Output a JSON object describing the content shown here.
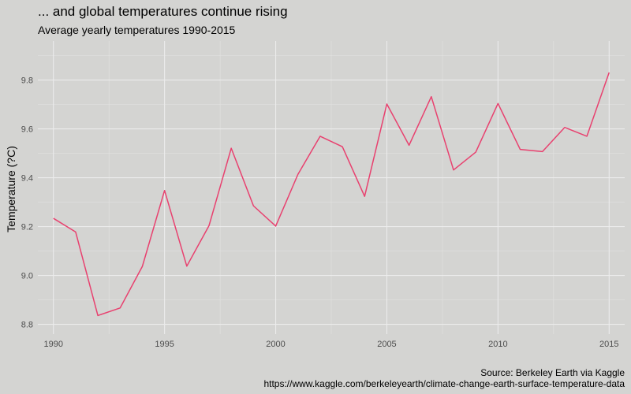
{
  "chart_data": {
    "type": "line",
    "title": "... and global temperatures continue rising",
    "subtitle": "Average yearly temperatures 1990-2015",
    "xlabel": "",
    "ylabel": "Temperature (?C)",
    "caption": [
      "Source: Berkeley Earth via Kaggle",
      "https://www.kaggle.com/berkeleyearth/climate-change-earth-surface-temperature-data"
    ],
    "x_ticks": [
      1990,
      1995,
      2000,
      2005,
      2010,
      2015
    ],
    "y_ticks": [
      "8.8",
      "9.0",
      "9.2",
      "9.4",
      "9.6",
      "9.8"
    ],
    "xlim": [
      1989.3,
      2015.7
    ],
    "ylim": [
      8.76,
      9.96
    ],
    "grid": true,
    "line_color": "#e8416f",
    "background_color": "#d4d4d2",
    "x": [
      1990,
      1991,
      1992,
      1993,
      1994,
      1995,
      1996,
      1997,
      1998,
      1999,
      2000,
      2001,
      2002,
      2003,
      2004,
      2005,
      2006,
      2007,
      2008,
      2009,
      2010,
      2011,
      2012,
      2013,
      2014,
      2015
    ],
    "y": [
      9.234,
      9.178,
      8.836,
      8.867,
      9.037,
      9.348,
      9.038,
      9.204,
      9.521,
      9.285,
      9.202,
      9.414,
      9.57,
      9.527,
      9.324,
      9.702,
      9.533,
      9.732,
      9.432,
      9.505,
      9.704,
      9.516,
      9.507,
      9.606,
      9.57,
      9.831
    ]
  }
}
